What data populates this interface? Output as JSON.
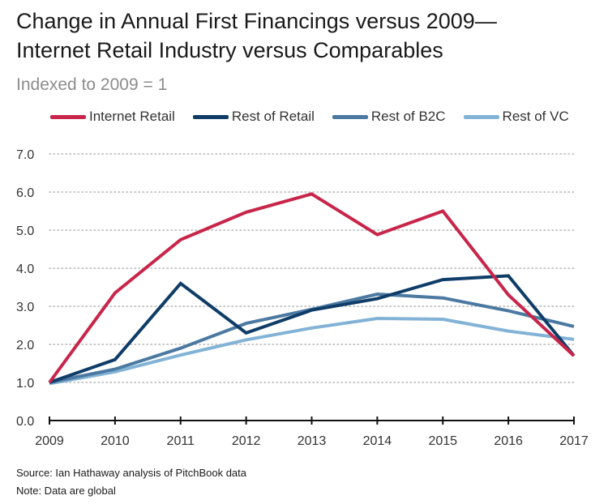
{
  "title_line1": "Change in Annual First Financings versus 2009—",
  "title_line2": "Internet Retail Industry versus Comparables",
  "subtitle": "Indexed to 2009 = 1",
  "source": "Source: Ian Hathaway analysis of PitchBook data",
  "note": "Note: Data are global",
  "chart_data": {
    "type": "line",
    "x": [
      "2009",
      "2010",
      "2011",
      "2012",
      "2013",
      "2014",
      "2015",
      "2016",
      "2017"
    ],
    "ylim": [
      0,
      7
    ],
    "yticks": [
      "0.0",
      "1.0",
      "2.0",
      "3.0",
      "4.0",
      "5.0",
      "6.0",
      "7.0"
    ],
    "grid": true,
    "legend_position": "top",
    "series": [
      {
        "name": "Internet Retail",
        "color": "#c8254a",
        "values": [
          1.0,
          3.35,
          4.75,
          5.47,
          5.95,
          4.88,
          5.5,
          3.3,
          1.7
        ]
      },
      {
        "name": "Rest of Retail",
        "color": "#0f3d68",
        "values": [
          1.0,
          1.6,
          3.6,
          2.3,
          2.9,
          3.2,
          3.7,
          3.8,
          1.7
        ]
      },
      {
        "name": "Rest of B2C",
        "color": "#4b79a1",
        "values": [
          1.0,
          1.35,
          1.9,
          2.55,
          2.92,
          3.32,
          3.22,
          2.88,
          2.47
        ]
      },
      {
        "name": "Rest of VC",
        "color": "#82b3d6",
        "values": [
          0.97,
          1.28,
          1.72,
          2.12,
          2.43,
          2.68,
          2.66,
          2.35,
          2.13
        ]
      }
    ]
  }
}
